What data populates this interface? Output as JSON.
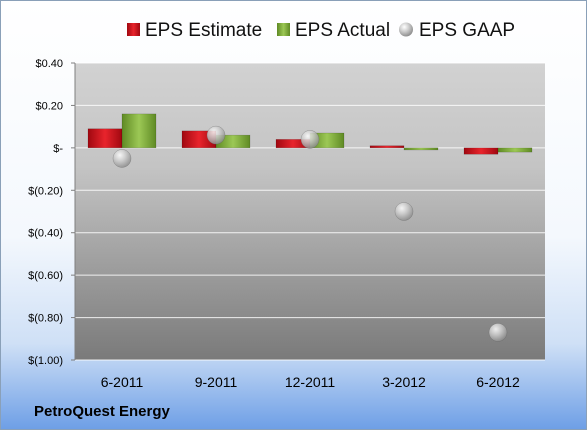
{
  "company": "PetroQuest Energy",
  "chart_data": {
    "type": "bar",
    "categories": [
      "6-2011",
      "9-2011",
      "12-2011",
      "3-2012",
      "6-2012"
    ],
    "series": [
      {
        "name": "EPS Estimate",
        "kind": "bar",
        "color": "#d0101c",
        "values": [
          0.09,
          0.08,
          0.04,
          0.01,
          -0.03
        ]
      },
      {
        "name": "EPS Actual",
        "kind": "bar",
        "color": "#82ad3c",
        "values": [
          0.16,
          0.06,
          0.07,
          -0.01,
          -0.02
        ]
      },
      {
        "name": "EPS GAAP",
        "kind": "scatter",
        "color": "#b8b8b8",
        "values": [
          -0.05,
          0.06,
          0.04,
          -0.3,
          -0.87
        ]
      }
    ],
    "y_tick_values": [
      0.4,
      0.2,
      0,
      -0.2,
      -0.4,
      -0.6,
      -0.8,
      -1.0
    ],
    "y_tick_labels": [
      "$0.40",
      "$0.20",
      "$-",
      "$(0.20)",
      "$(0.40)",
      "$(0.60)",
      "$(0.80)",
      "$(1.00)"
    ],
    "ylim": [
      -1.0,
      0.4
    ],
    "grid": true,
    "legend_position": "top"
  }
}
